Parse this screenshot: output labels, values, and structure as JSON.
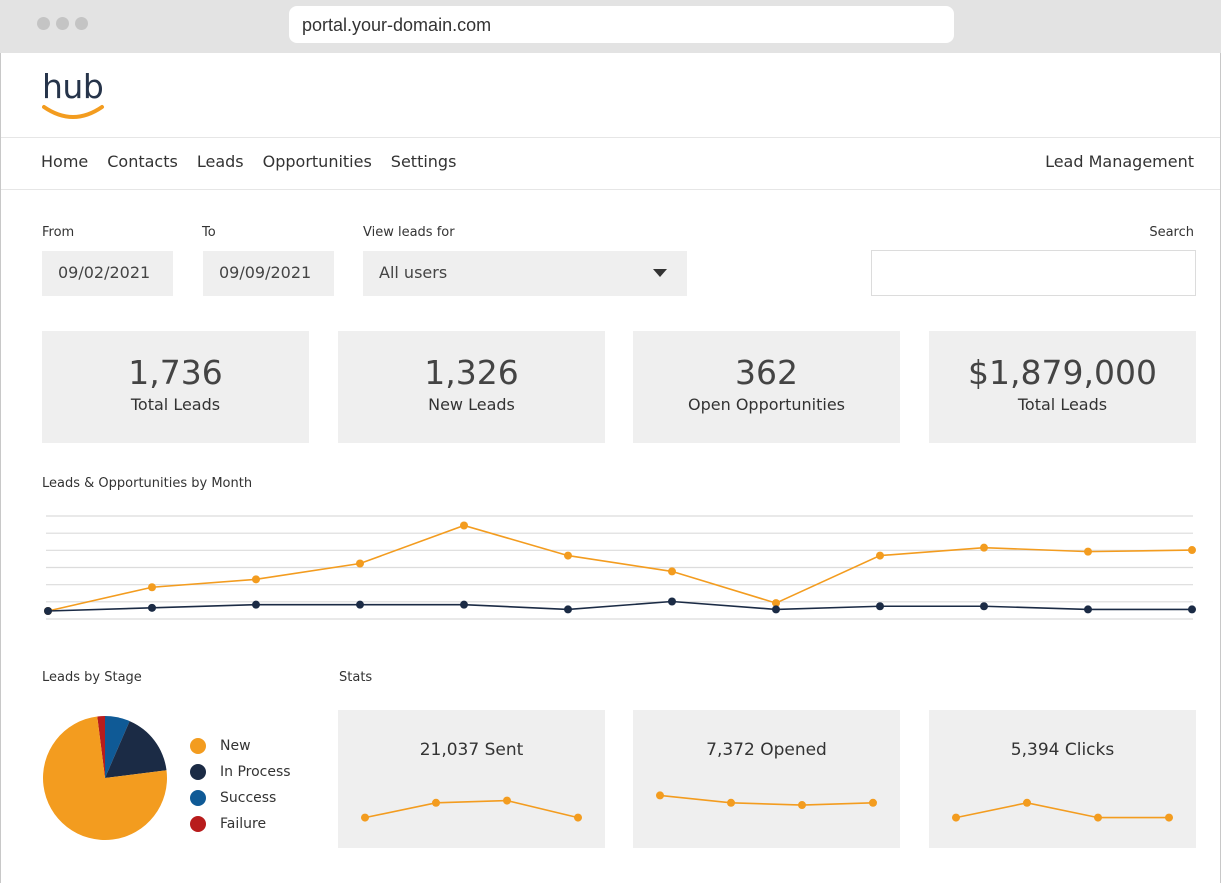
{
  "browser": {
    "url": "portal.your-domain.com"
  },
  "logo": {
    "text": "hub"
  },
  "nav": {
    "items": [
      "Home",
      "Contacts",
      "Leads",
      "Opportunities",
      "Settings"
    ],
    "right": "Lead Management"
  },
  "filters": {
    "from_label": "From",
    "from_value": "09/02/2021",
    "to_label": "To",
    "to_value": "09/09/2021",
    "view_label": "View leads for",
    "view_value": "All users",
    "search_label": "Search"
  },
  "kpis": [
    {
      "value": "1,736",
      "label": "Total Leads"
    },
    {
      "value": "1,326",
      "label": "New Leads"
    },
    {
      "value": "362",
      "label": "Open Opportunities"
    },
    {
      "value": "$1,879,000",
      "label": "Total Leads"
    }
  ],
  "line_chart": {
    "title": "Leads & Opportunities by Month",
    "colors": {
      "orange": "#f39c1f",
      "navy": "#1b2b45",
      "grid": "#dcdcdc"
    }
  },
  "chart_data": [
    {
      "type": "line",
      "title": "Leads & Opportunities by Month",
      "x": [
        1,
        2,
        3,
        4,
        5,
        6,
        7,
        8,
        9,
        10,
        11,
        12
      ],
      "ylim": [
        0,
        6
      ],
      "grid": true,
      "series": [
        {
          "color": "#f39c1f",
          "values": [
            0.0,
            1.5,
            2.0,
            3.0,
            5.4,
            3.5,
            2.5,
            0.5,
            3.5,
            4.0,
            3.75,
            3.85
          ]
        },
        {
          "color": "#1b2b45",
          "values": [
            0.0,
            0.2,
            0.4,
            0.4,
            0.4,
            0.1,
            0.6,
            0.1,
            0.3,
            0.3,
            0.1,
            0.1
          ]
        }
      ]
    },
    {
      "type": "pie",
      "title": "Leads by Stage",
      "categories": [
        "New",
        "In Process",
        "Success",
        "Failure"
      ],
      "values": [
        75,
        16.5,
        6.5,
        2
      ],
      "colors": [
        "#f39c1f",
        "#1b2b45",
        "#0f5a96",
        "#b81c1c"
      ]
    },
    {
      "type": "line",
      "title": "21,037 Sent",
      "x": [
        1,
        2,
        3,
        4
      ],
      "values": [
        1,
        3,
        3.3,
        1
      ],
      "ylim": [
        0,
        5
      ],
      "color": "#f39c1f"
    },
    {
      "type": "line",
      "title": "7,372 Opened",
      "x": [
        1,
        2,
        3,
        4
      ],
      "values": [
        4,
        3,
        2.7,
        3
      ],
      "ylim": [
        0,
        5
      ],
      "color": "#f39c1f"
    },
    {
      "type": "line",
      "title": "5,394 Clicks",
      "x": [
        1,
        2,
        3,
        4
      ],
      "values": [
        1,
        3,
        1,
        1
      ],
      "ylim": [
        0,
        5
      ],
      "color": "#f39c1f"
    }
  ],
  "pie_section": {
    "title": "Leads by Stage",
    "legend": [
      {
        "label": "New",
        "color": "#f39c1f"
      },
      {
        "label": "In Process",
        "color": "#1b2b45"
      },
      {
        "label": "Success",
        "color": "#0f5a96"
      },
      {
        "label": "Failure",
        "color": "#b81c1c"
      }
    ]
  },
  "stats": {
    "title": "Stats",
    "cards": [
      {
        "title": "21,037 Sent"
      },
      {
        "title": "7,372 Opened"
      },
      {
        "title": "5,394 Clicks"
      }
    ]
  }
}
